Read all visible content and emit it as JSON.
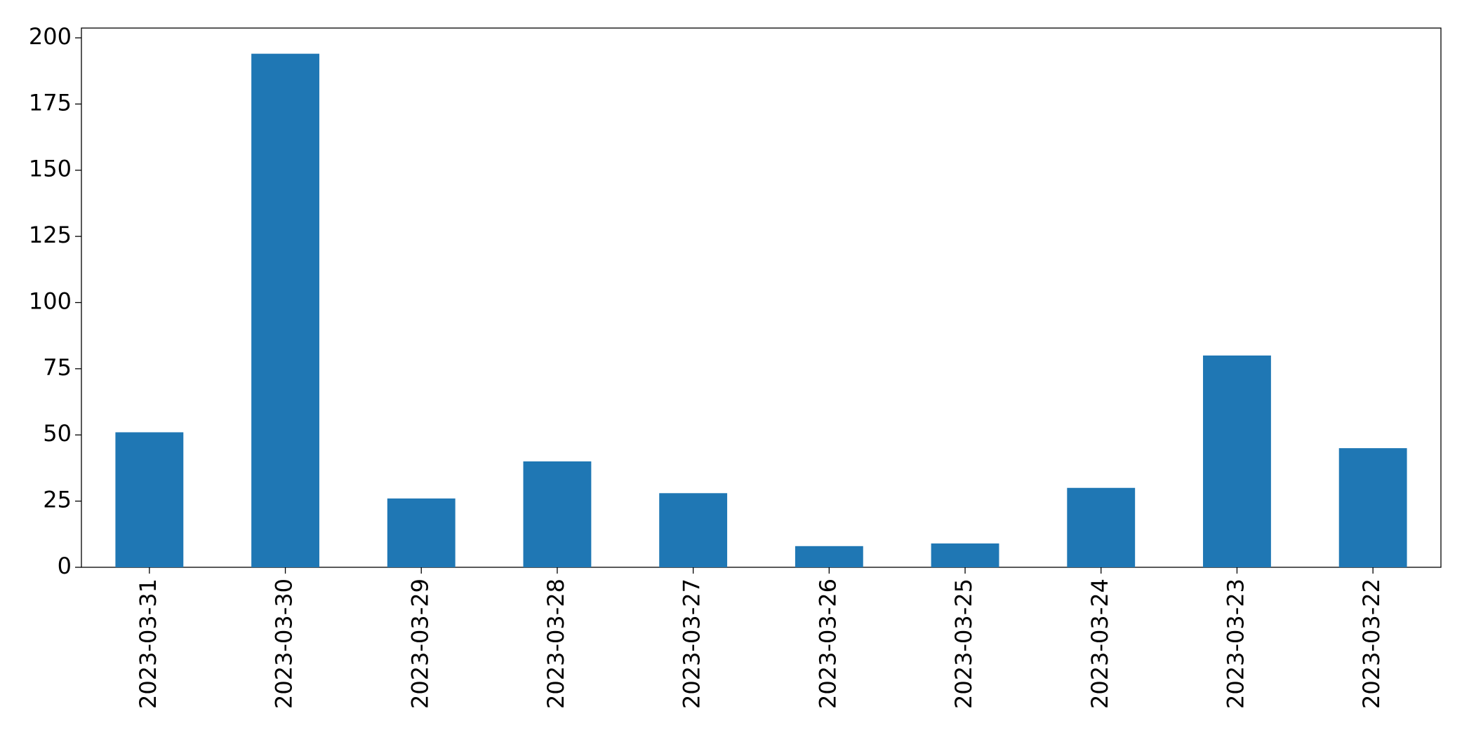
{
  "chart_data": {
    "type": "bar",
    "categories": [
      "2023-03-31",
      "2023-03-30",
      "2023-03-29",
      "2023-03-28",
      "2023-03-27",
      "2023-03-26",
      "2023-03-25",
      "2023-03-24",
      "2023-03-23",
      "2023-03-22"
    ],
    "values": [
      51,
      194,
      26,
      40,
      28,
      8,
      9,
      30,
      80,
      45
    ],
    "color": "#1f77b4",
    "ylim": [
      0,
      203.7
    ],
    "yticks": [
      0,
      25,
      50,
      75,
      100,
      125,
      150,
      175,
      200
    ],
    "grid": false
  }
}
